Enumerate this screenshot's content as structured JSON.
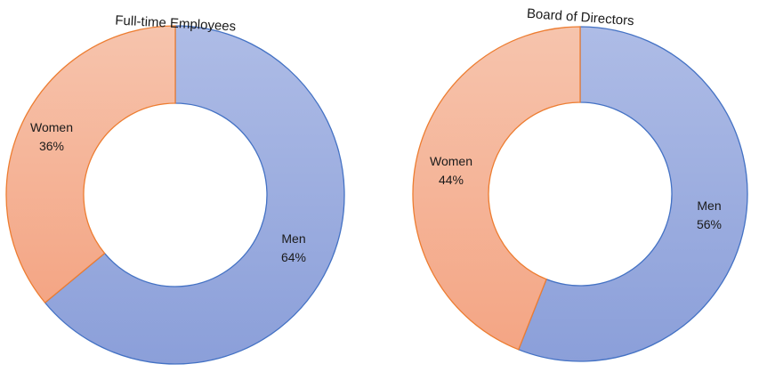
{
  "colors": {
    "men_fill_top": "#aebce6",
    "men_fill_bottom": "#8b9fd9",
    "men_stroke": "#4472c4",
    "women_fill_top": "#f6c4ad",
    "women_fill_bottom": "#f4a584",
    "women_stroke": "#ed7d31"
  },
  "chart_data": [
    {
      "type": "pie",
      "donut": true,
      "title": "Full-time Employees",
      "slices": [
        {
          "name": "Men",
          "value": 64,
          "label": "64%"
        },
        {
          "name": "Women",
          "value": 36,
          "label": "36%"
        }
      ]
    },
    {
      "type": "pie",
      "donut": true,
      "title": "Board of Directors",
      "slices": [
        {
          "name": "Men",
          "value": 56,
          "label": "56%"
        },
        {
          "name": "Women",
          "value": 44,
          "label": "44%"
        }
      ]
    }
  ]
}
